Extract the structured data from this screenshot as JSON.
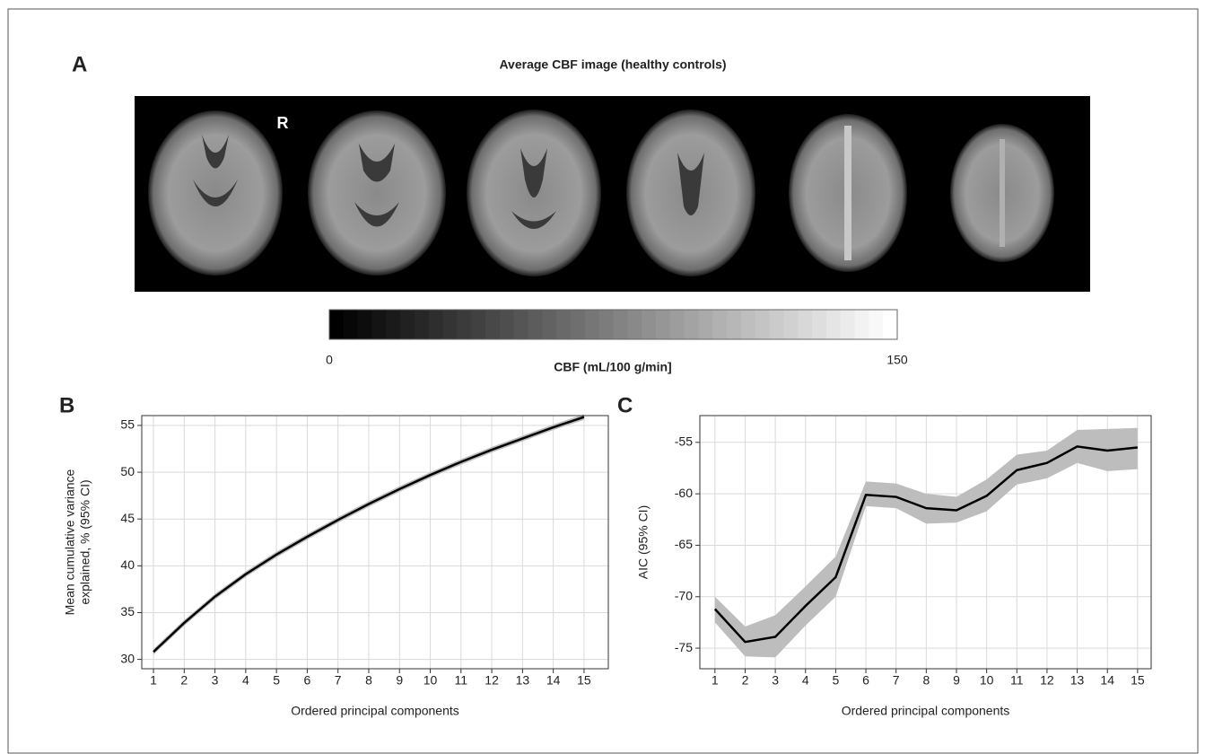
{
  "panel_a": {
    "panel_label": "A",
    "title": "Average CBF image (healthy controls)",
    "orientation_label": "R",
    "colorbar": {
      "lim": [
        0,
        150
      ],
      "ticks": [
        0,
        150
      ],
      "label": "CBF (mL/100 g/min]"
    }
  },
  "chart_data": [
    {
      "type": "line",
      "panel_label": "B",
      "x_label": "Ordered principal components",
      "y_label": [
        "Mean cumulative variance",
        "explained, % (95% CI)"
      ],
      "x": [
        1,
        2,
        3,
        4,
        5,
        6,
        7,
        8,
        9,
        10,
        11,
        12,
        13,
        14,
        15
      ],
      "values": [
        30.8,
        33.9,
        36.7,
        39.1,
        41.2,
        43.1,
        44.9,
        46.6,
        48.2,
        49.7,
        51.1,
        52.4,
        53.6,
        54.8,
        55.9
      ],
      "ci_lower": [
        30.5,
        33.6,
        36.4,
        38.8,
        40.9,
        42.8,
        44.6,
        46.3,
        47.9,
        49.4,
        50.8,
        52.1,
        53.3,
        54.5,
        55.6
      ],
      "ci_upper": [
        31.1,
        34.2,
        37.0,
        39.4,
        41.5,
        43.4,
        45.2,
        46.9,
        48.5,
        50.0,
        51.4,
        52.7,
        53.9,
        55.1,
        56.2
      ],
      "color": "#000000",
      "band_color": "#bdbdbd",
      "xlim": [
        0.62,
        15.79
      ],
      "ylim": [
        29.0,
        56.05
      ],
      "xticks": [
        1,
        2,
        3,
        4,
        5,
        6,
        7,
        8,
        9,
        10,
        11,
        12,
        13,
        14,
        15
      ],
      "yticks": [
        30,
        35,
        40,
        45,
        50,
        55
      ],
      "grid": true
    },
    {
      "type": "line",
      "panel_label": "C",
      "x_label": "Ordered principal components",
      "y_label": [
        "AIC (95% CI)"
      ],
      "x": [
        1,
        2,
        3,
        4,
        5,
        6,
        7,
        8,
        9,
        10,
        11,
        12,
        13,
        14,
        15
      ],
      "values": [
        -71.2,
        -74.4,
        -73.9,
        -70.9,
        -68.1,
        -60.1,
        -60.3,
        -61.4,
        -61.6,
        -60.2,
        -57.7,
        -57.0,
        -55.4,
        -55.8,
        -55.5
      ],
      "ci_lower": [
        -72.5,
        -75.8,
        -75.9,
        -72.8,
        -70.0,
        -61.2,
        -61.4,
        -62.9,
        -62.8,
        -61.7,
        -59.1,
        -58.5,
        -57.0,
        -57.8,
        -57.6
      ],
      "ci_upper": [
        -70.0,
        -72.9,
        -71.8,
        -69.0,
        -66.1,
        -58.8,
        -59.0,
        -60.0,
        -60.3,
        -58.6,
        -56.2,
        -55.8,
        -53.8,
        -53.7,
        -53.6
      ],
      "color": "#000000",
      "band_color": "#bdbdbd",
      "xlim": [
        0.5,
        15.45
      ],
      "ylim": [
        -77.0,
        -52.4
      ],
      "xticks": [
        1,
        2,
        3,
        4,
        5,
        6,
        7,
        8,
        9,
        10,
        11,
        12,
        13,
        14,
        15
      ],
      "yticks": [
        -75,
        -70,
        -65,
        -60,
        -55
      ],
      "grid": true
    }
  ]
}
